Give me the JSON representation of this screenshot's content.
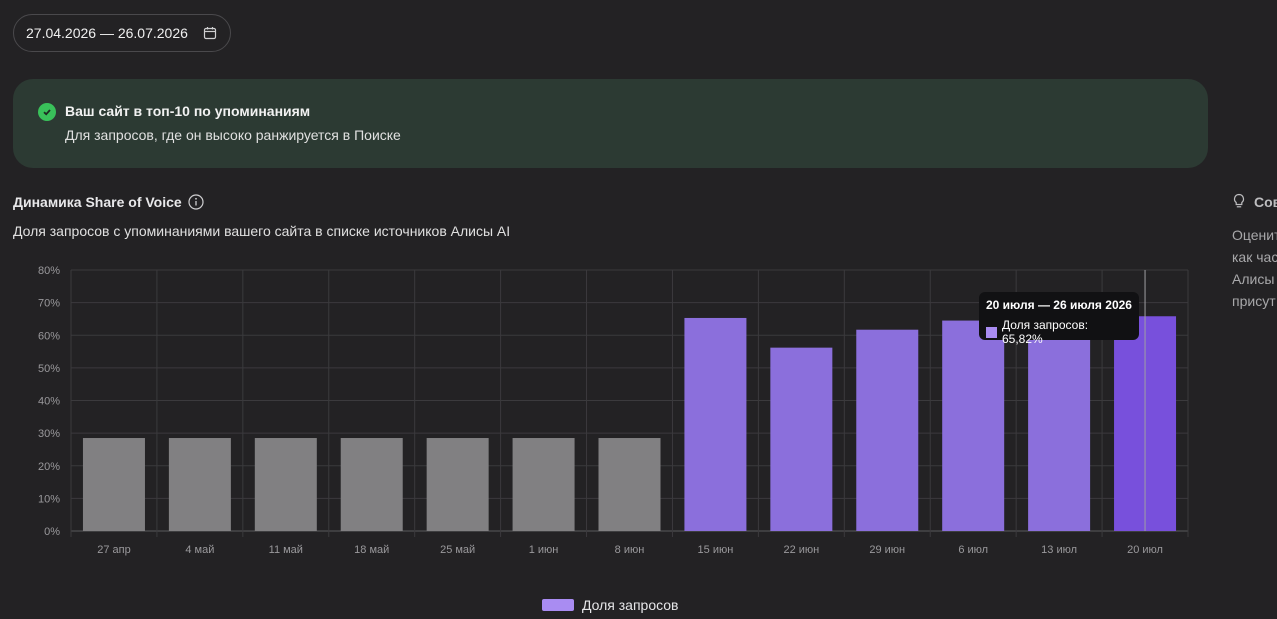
{
  "date_range": "27.04.2026 — 26.07.2026",
  "banner": {
    "title": "Ваш сайт в топ-10 по упоминаниям",
    "subtitle": "Для запросов, где он высоко ранжируется в Поиске"
  },
  "chart_header": {
    "title": "Динамика Share of Voice",
    "subtitle": "Доля запросов с упоминаниями вашего сайта в списке источников Алисы AI"
  },
  "right_panel": {
    "title": "Сов",
    "lines": [
      "Оценит",
      "как час",
      "Алисы",
      "присут"
    ]
  },
  "tooltip": {
    "title": "20 июля — 26 июля 2026",
    "value_text": "Доля запросов: 65,82%"
  },
  "legend": {
    "label": "Доля запросов"
  },
  "colors": {
    "gray": "#818082",
    "purple": "#8b6fdc",
    "purple_active": "#7850dc",
    "legend": "#a98cf2"
  },
  "chart_data": {
    "type": "bar",
    "categories": [
      "27 апр",
      "4 май",
      "11 май",
      "18 май",
      "25 май",
      "1 июн",
      "8 июн",
      "15 июн",
      "22 июн",
      "29 июн",
      "6 июл",
      "13 июл",
      "20 июл"
    ],
    "series": [
      {
        "name": "Доля запросов",
        "values": [
          28.5,
          28.5,
          28.5,
          28.5,
          28.5,
          28.5,
          28.5,
          65.3,
          56.2,
          61.7,
          64.5,
          63.0,
          65.82
        ]
      }
    ],
    "highlighted": [
      false,
      false,
      false,
      false,
      false,
      false,
      false,
      true,
      true,
      true,
      true,
      true,
      true
    ],
    "active_index": 12,
    "y_ticks": [
      "0%",
      "10%",
      "20%",
      "30%",
      "40%",
      "50%",
      "60%",
      "70%",
      "80%"
    ],
    "ylim": [
      0,
      80
    ],
    "grid": true,
    "legend_position": "bottom"
  }
}
